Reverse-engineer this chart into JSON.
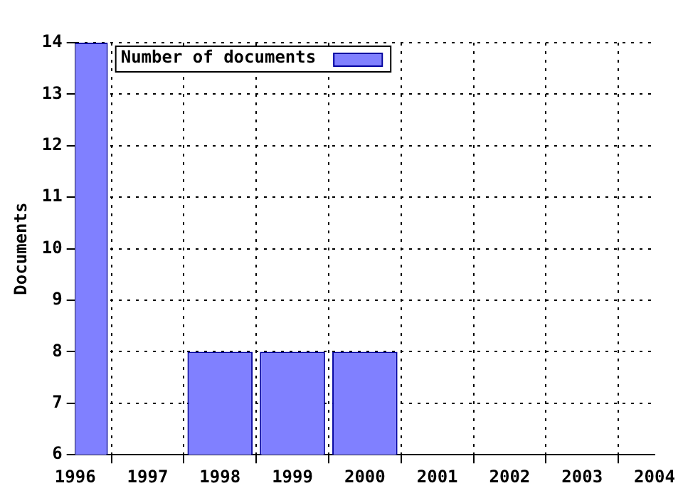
{
  "chart_data": {
    "type": "bar",
    "ylabel": "Documents",
    "x": [
      1996,
      1998,
      1999,
      2000
    ],
    "series": [
      {
        "name": "Number of documents",
        "color": "#8080ff",
        "values": [
          14,
          8,
          8,
          8
        ]
      }
    ],
    "xlim": [
      1996,
      2004
    ],
    "xticks": [
      1996,
      1997,
      1998,
      1999,
      2000,
      2001,
      2002,
      2003,
      2004
    ],
    "ylim": [
      6,
      14
    ],
    "yticks": [
      6,
      7,
      8,
      9,
      10,
      11,
      12,
      13,
      14
    ],
    "grid": true,
    "legend": "top left"
  }
}
